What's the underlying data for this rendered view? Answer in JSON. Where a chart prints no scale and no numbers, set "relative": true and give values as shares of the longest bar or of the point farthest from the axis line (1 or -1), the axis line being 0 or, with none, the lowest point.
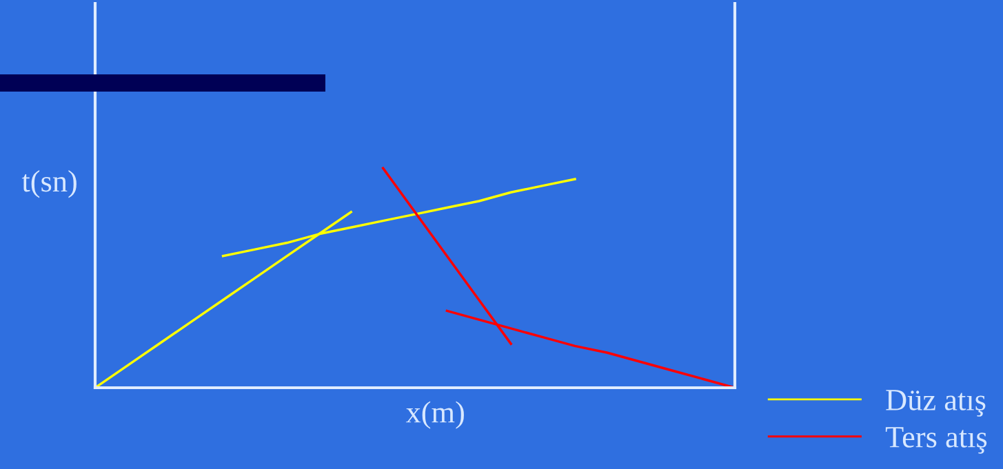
{
  "chart_data": {
    "type": "line",
    "xlabel": "x(m)",
    "ylabel": "t(sn)",
    "relative": true,
    "legend": "bottom right",
    "marker": "none",
    "line_style": "solid",
    "categories": [
      null,
      null,
      null,
      null,
      null,
      null,
      null,
      null,
      null,
      null,
      null,
      null,
      null,
      null,
      null,
      null,
      null,
      null,
      null,
      null,
      null
    ],
    "series": [
      {
        "name": "Düz atış",
        "color": "#ffff00",
        "values": [
          0.0,
          0.1,
          0.2,
          0.3,
          0.4,
          0.5,
          0.6,
          0.7,
          0.8,
          null,
          null,
          null,
          null,
          null,
          null,
          null,
          null,
          null,
          null,
          null,
          null
        ]
      },
      {
        "color": "#ffff00",
        "values": [
          null,
          null,
          null,
          null,
          0.6,
          0.63,
          0.66,
          0.7,
          0.73,
          0.76,
          0.79,
          0.82,
          0.85,
          0.89,
          0.92,
          0.95,
          null,
          null,
          null,
          null,
          null
        ]
      },
      {
        "name": "Ters atış",
        "color": "#ff0000",
        "values": [
          null,
          null,
          null,
          null,
          null,
          null,
          null,
          null,
          null,
          1.0,
          0.8,
          0.6,
          0.4,
          0.2,
          null,
          null,
          null,
          null,
          null,
          null,
          null
        ]
      },
      {
        "color": "#ff0000",
        "values": [
          null,
          null,
          null,
          null,
          null,
          null,
          null,
          null,
          null,
          null,
          null,
          0.35,
          0.31,
          0.27,
          0.23,
          0.19,
          0.16,
          0.12,
          0.08,
          0.04,
          0.0
        ]
      }
    ]
  }
}
